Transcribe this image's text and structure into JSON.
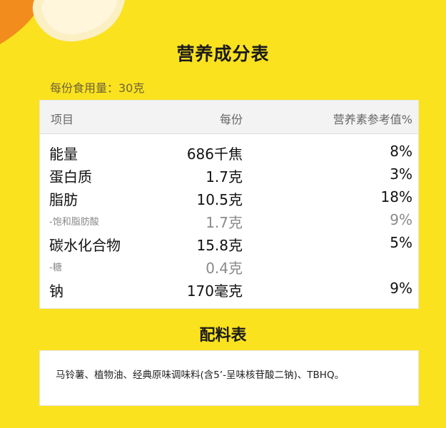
{
  "header": {
    "title": "营养成分表",
    "serving": "每份食用量：30克"
  },
  "table": {
    "columns": [
      "项目",
      "每份",
      "营养素参考值%"
    ],
    "rows": [
      {
        "name": "能量",
        "value": "686千焦",
        "nrv": "8%",
        "sub": false
      },
      {
        "name": "蛋白质",
        "value": "1.7克",
        "nrv": "3%",
        "sub": false
      },
      {
        "name": "脂肪",
        "value": "10.5克",
        "nrv": "18%",
        "sub": false
      },
      {
        "name": "-饱和脂肪酸",
        "value": "1.7克",
        "nrv": "9%",
        "sub": true
      },
      {
        "name": "碳水化合物",
        "value": "15.8克",
        "nrv": "5%",
        "sub": false
      },
      {
        "name": "-糖",
        "value": "0.4克",
        "nrv": "",
        "sub": true
      },
      {
        "name": "钠",
        "value": "170毫克",
        "nrv": "9%",
        "sub": false
      }
    ]
  },
  "ingredients": {
    "title": "配料表",
    "text": "马铃薯、植物油、经典原味调味料(含5’-呈味核苷酸二钠)、TBHQ。"
  },
  "colors": {
    "background": "#FAE21F",
    "card": "#FFFFFF",
    "header_row": "#F3F3F3"
  }
}
